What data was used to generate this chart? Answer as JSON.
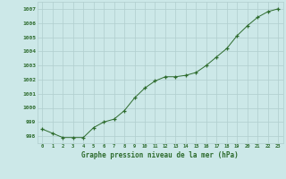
{
  "x": [
    0,
    1,
    2,
    3,
    4,
    5,
    6,
    7,
    8,
    9,
    10,
    11,
    12,
    13,
    14,
    15,
    16,
    17,
    18,
    19,
    20,
    21,
    22,
    23
  ],
  "y": [
    998.5,
    998.2,
    997.9,
    997.9,
    997.9,
    998.6,
    999.0,
    999.2,
    999.8,
    1000.7,
    1001.4,
    1001.9,
    1002.2,
    1002.2,
    1002.3,
    1002.5,
    1003.0,
    1003.6,
    1004.2,
    1005.1,
    1005.8,
    1006.4,
    1006.8,
    1007.0
  ],
  "line_color": "#2d6b2d",
  "marker_color": "#2d6b2d",
  "bg_color": "#cce8e8",
  "grid_color": "#b0cece",
  "xlabel": "Graphe pression niveau de la mer (hPa)",
  "xlabel_color": "#2d6b2d",
  "tick_color": "#2d6b2d",
  "ylim": [
    997.5,
    1007.5
  ],
  "yticks": [
    998,
    999,
    1000,
    1001,
    1002,
    1003,
    1004,
    1005,
    1006,
    1007
  ],
  "xticks": [
    0,
    1,
    2,
    3,
    4,
    5,
    6,
    7,
    8,
    9,
    10,
    11,
    12,
    13,
    14,
    15,
    16,
    17,
    18,
    19,
    20,
    21,
    22,
    23
  ],
  "xlim": [
    -0.5,
    23.5
  ]
}
